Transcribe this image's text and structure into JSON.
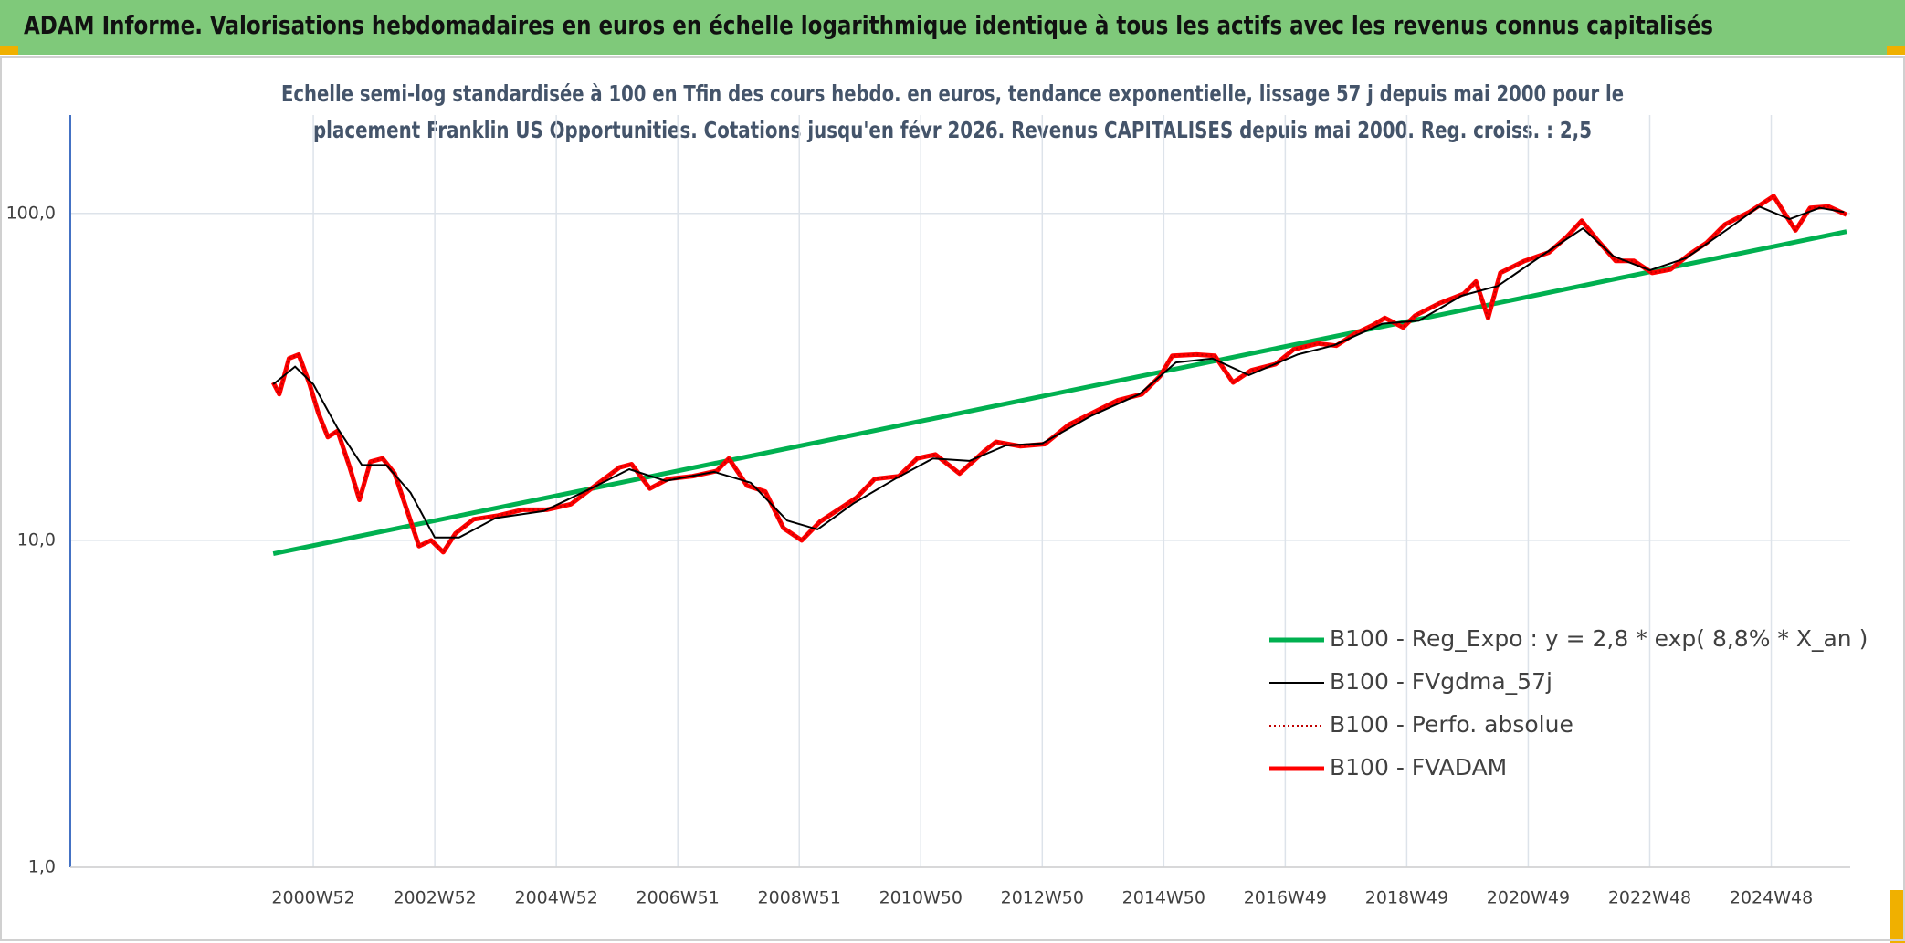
{
  "chart_data": {
    "type": "line",
    "title": "ADAM Informe. Valorisations hebdomadaires en euros en échelle logarithmique identique à tous les actifs avec les revenus connus capitalisés",
    "subtitle": [
      "Echelle semi-log standardisée à 100 en Tfin des cours hebdo. en euros, tendance exponentielle, lissage 57 j depuis mai 2000 pour le",
      "placement Franklin US Opportunities. Cotations jusqu'en févr 2026. Revenus CAPITALISES depuis mai 2000. Reg. croiss. : 2,5"
    ],
    "xlim": [
      1997,
      2026.3
    ],
    "xticks": [
      {
        "value": 2001,
        "label": "2000W52"
      },
      {
        "value": 2003,
        "label": "2002W52"
      },
      {
        "value": 2005,
        "label": "2004W52"
      },
      {
        "value": 2007,
        "label": "2006W51"
      },
      {
        "value": 2009,
        "label": "2008W51"
      },
      {
        "value": 2011,
        "label": "2010W50"
      },
      {
        "value": 2013,
        "label": "2012W50"
      },
      {
        "value": 2015,
        "label": "2014W50"
      },
      {
        "value": 2017,
        "label": "2016W49"
      },
      {
        "value": 2019,
        "label": "2018W49"
      },
      {
        "value": 2021,
        "label": "2020W49"
      },
      {
        "value": 2023,
        "label": "2022W48"
      },
      {
        "value": 2025,
        "label": "2024W48"
      }
    ],
    "ylim": [
      1,
      200
    ],
    "log_scale": true,
    "grid": true,
    "legend": "lower right",
    "yticks": [
      {
        "value": 1,
        "label": "1,0"
      },
      {
        "value": 10,
        "label": "10,0"
      },
      {
        "value": 100,
        "label": "100,0"
      }
    ],
    "series": [
      {
        "name": "B100 - Reg_Expo : y = 2,8 * exp( 8,8% *  X_an )",
        "color": "#00b050",
        "style": "solid",
        "width": 5,
        "x": [
          2000.34,
          2026.24
        ],
        "values": [
          9.1,
          88
        ]
      },
      {
        "name": "B100 - FVgdma_57j",
        "color": "#000000",
        "style": "solid",
        "width": 2,
        "x": [
          2000.34,
          2000.7,
          2001.0,
          2001.4,
          2001.8,
          2002.2,
          2002.6,
          2003.0,
          2003.4,
          2004.0,
          2004.8,
          2005.6,
          2006.2,
          2006.8,
          2007.6,
          2008.2,
          2008.8,
          2009.3,
          2009.9,
          2010.6,
          2011.2,
          2011.8,
          2012.4,
          2013.0,
          2013.8,
          2014.6,
          2015.2,
          2015.8,
          2016.4,
          2017.2,
          2017.8,
          2018.6,
          2019.2,
          2019.9,
          2020.5,
          2021.3,
          2021.9,
          2022.4,
          2023.0,
          2023.6,
          2024.3,
          2024.8,
          2025.3,
          2025.8,
          2026.2
        ],
        "values": [
          30,
          34,
          30,
          22,
          17,
          17,
          14,
          10.2,
          10.2,
          11.7,
          12.3,
          14.5,
          16.5,
          15.2,
          16.2,
          15,
          11.5,
          10.8,
          13,
          15.5,
          17.8,
          17.5,
          19.5,
          19.8,
          24,
          28,
          35,
          36,
          32,
          37,
          39.5,
          46,
          47,
          56,
          60,
          76,
          90,
          74,
          67,
          73,
          90,
          105,
          96,
          104,
          101
        ]
      },
      {
        "name": "B100 - Perfo. absolue",
        "color": "#c00000",
        "style": "dotted",
        "width": 2,
        "x": [
          2000.34,
          2000.44,
          2000.6,
          2000.76,
          2000.94,
          2001.08,
          2001.24,
          2001.4,
          2001.6,
          2001.76,
          2001.94,
          2002.14,
          2002.34,
          2002.54,
          2002.74,
          2002.94,
          2003.14,
          2003.34,
          2003.64,
          2004.04,
          2004.44,
          2004.84,
          2005.24,
          2005.64,
          2006.04,
          2006.24,
          2006.54,
          2006.84,
          2007.24,
          2007.64,
          2007.84,
          2008.14,
          2008.44,
          2008.74,
          2009.04,
          2009.34,
          2009.64,
          2009.94,
          2010.24,
          2010.64,
          2010.94,
          2011.24,
          2011.64,
          2012.04,
          2012.24,
          2012.64,
          2013.04,
          2013.44,
          2013.84,
          2014.24,
          2014.64,
          2014.94,
          2015.14,
          2015.54,
          2015.84,
          2016.14,
          2016.44,
          2016.84,
          2017.14,
          2017.54,
          2017.84,
          2018.14,
          2018.44,
          2018.64,
          2018.94,
          2019.14,
          2019.54,
          2019.94,
          2020.14,
          2020.34,
          2020.54,
          2020.94,
          2021.34,
          2021.64,
          2021.88,
          2022.14,
          2022.44,
          2022.74,
          2023.04,
          2023.34,
          2023.64,
          2023.94,
          2024.24,
          2024.64,
          2025.04,
          2025.4,
          2025.64,
          2025.94,
          2026.24
        ],
        "values": [
          30.4,
          28,
          36,
          37,
          30,
          24.6,
          20.7,
          21.6,
          16.7,
          13.3,
          17.4,
          17.8,
          16,
          12.4,
          9.6,
          10,
          9.2,
          10.5,
          11.6,
          11.9,
          12.4,
          12.4,
          12.9,
          14.7,
          16.7,
          17.1,
          14.4,
          15.4,
          15.7,
          16.3,
          17.8,
          14.7,
          14.1,
          10.9,
          10,
          11.4,
          12.4,
          13.5,
          15.4,
          15.7,
          17.8,
          18.3,
          16,
          18.7,
          20,
          19.4,
          19.7,
          22.6,
          24.6,
          26.8,
          28,
          31.8,
          36.7,
          37,
          36.7,
          30.4,
          33.1,
          34.6,
          38.4,
          40,
          39.4,
          42.8,
          45.5,
          47.9,
          44.8,
          48.7,
          53.1,
          56.8,
          61.9,
          47.9,
          65.8,
          71.6,
          76,
          85,
          95,
          82.8,
          71.6,
          71.6,
          65.8,
          67.4,
          74.7,
          81.4,
          92.6,
          101,
          113,
          88.7,
          104,
          105,
          99.1
        ]
      },
      {
        "name": "B100 - FVADAM",
        "color": "#ff0000",
        "style": "solid",
        "width": 5,
        "x": [
          2000.34,
          2000.44,
          2000.6,
          2000.76,
          2000.94,
          2001.08,
          2001.24,
          2001.4,
          2001.6,
          2001.76,
          2001.94,
          2002.14,
          2002.34,
          2002.54,
          2002.74,
          2002.94,
          2003.14,
          2003.34,
          2003.64,
          2004.04,
          2004.44,
          2004.84,
          2005.24,
          2005.64,
          2006.04,
          2006.24,
          2006.54,
          2006.84,
          2007.24,
          2007.64,
          2007.84,
          2008.14,
          2008.44,
          2008.74,
          2009.04,
          2009.34,
          2009.64,
          2009.94,
          2010.24,
          2010.64,
          2010.94,
          2011.24,
          2011.64,
          2012.04,
          2012.24,
          2012.64,
          2013.04,
          2013.44,
          2013.84,
          2014.24,
          2014.64,
          2014.94,
          2015.14,
          2015.54,
          2015.84,
          2016.14,
          2016.44,
          2016.84,
          2017.14,
          2017.54,
          2017.84,
          2018.14,
          2018.44,
          2018.64,
          2018.94,
          2019.14,
          2019.54,
          2019.94,
          2020.14,
          2020.34,
          2020.54,
          2020.94,
          2021.34,
          2021.64,
          2021.88,
          2022.14,
          2022.44,
          2022.74,
          2023.04,
          2023.34,
          2023.64,
          2023.94,
          2024.24,
          2024.64,
          2025.04,
          2025.4,
          2025.64,
          2025.94,
          2026.24
        ],
        "values": [
          30.4,
          28,
          36,
          37,
          30,
          24.6,
          20.7,
          21.6,
          16.7,
          13.3,
          17.4,
          17.8,
          16,
          12.4,
          9.6,
          10,
          9.2,
          10.5,
          11.6,
          11.9,
          12.4,
          12.4,
          12.9,
          14.7,
          16.7,
          17.1,
          14.4,
          15.4,
          15.7,
          16.3,
          17.8,
          14.7,
          14.1,
          10.9,
          10,
          11.4,
          12.4,
          13.5,
          15.4,
          15.7,
          17.8,
          18.3,
          16,
          18.7,
          20,
          19.4,
          19.7,
          22.6,
          24.6,
          26.8,
          28,
          31.8,
          36.7,
          37,
          36.7,
          30.4,
          33.1,
          34.6,
          38.4,
          40,
          39.4,
          42.8,
          45.5,
          47.9,
          44.8,
          48.7,
          53.1,
          56.8,
          61.9,
          47.9,
          65.8,
          71.6,
          76,
          85,
          95,
          82.8,
          71.6,
          71.6,
          65.8,
          67.4,
          74.7,
          81.4,
          92.6,
          101,
          113,
          88.7,
          104,
          105,
          99.1
        ]
      }
    ]
  }
}
